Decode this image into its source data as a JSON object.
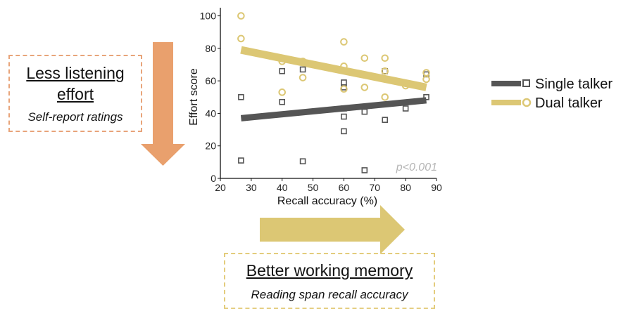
{
  "left_box": {
    "title_line1": "Less listening",
    "title_line2": "effort",
    "subtitle": "Self-report ratings"
  },
  "bottom_box": {
    "title": "Better working memory",
    "subtitle": "Reading span recall accuracy"
  },
  "colors": {
    "single": "#555555",
    "dual": "#DCC774",
    "left_arrow": "#E9A06D",
    "right_arrow": "#DCC774"
  },
  "chart_data": {
    "type": "scatter",
    "xlabel": "Recall accuracy (%)",
    "ylabel": "Effort score",
    "xlim": [
      20,
      90
    ],
    "ylim": [
      0,
      105
    ],
    "xticks": [
      20,
      30,
      40,
      50,
      60,
      70,
      80,
      90
    ],
    "yticks": [
      0,
      20,
      40,
      60,
      80,
      100
    ],
    "annotation": "p<0.001",
    "legend_placement": "right",
    "series": [
      {
        "name": "Single talker",
        "marker": "square",
        "color": "#555555",
        "points": [
          [
            26.7,
            50
          ],
          [
            26.7,
            11
          ],
          [
            40,
            66
          ],
          [
            40,
            47
          ],
          [
            46.7,
            67
          ],
          [
            46.7,
            10.5
          ],
          [
            60,
            59
          ],
          [
            60,
            56
          ],
          [
            60,
            43
          ],
          [
            60,
            38
          ],
          [
            60,
            29
          ],
          [
            66.7,
            41
          ],
          [
            66.7,
            5
          ],
          [
            73.3,
            66
          ],
          [
            73.3,
            36
          ],
          [
            80,
            43
          ],
          [
            86.7,
            64
          ],
          [
            86.7,
            50
          ]
        ],
        "trend": [
          [
            26.7,
            37
          ],
          [
            86.7,
            48
          ]
        ]
      },
      {
        "name": "Dual talker",
        "marker": "circle",
        "color": "#DCC774",
        "points": [
          [
            26.7,
            100
          ],
          [
            26.7,
            86
          ],
          [
            40,
            53
          ],
          [
            40,
            72
          ],
          [
            46.7,
            72
          ],
          [
            46.7,
            62
          ],
          [
            60,
            84
          ],
          [
            60,
            69
          ],
          [
            60,
            55
          ],
          [
            66.7,
            74
          ],
          [
            66.7,
            56
          ],
          [
            73.3,
            74
          ],
          [
            73.3,
            66
          ],
          [
            73.3,
            50
          ],
          [
            80,
            57
          ],
          [
            86.7,
            65
          ],
          [
            86.7,
            61
          ]
        ],
        "trend": [
          [
            26.7,
            79
          ],
          [
            86.7,
            56
          ]
        ]
      }
    ]
  }
}
